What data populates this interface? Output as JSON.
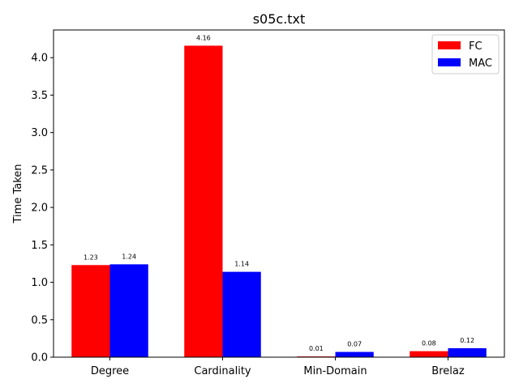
{
  "chart_data": {
    "type": "bar",
    "title": "s05c.txt",
    "xlabel": "",
    "ylabel": "Time Taken",
    "categories": [
      "Degree",
      "Cardinality",
      "Min-Domain",
      "Brelaz"
    ],
    "series": [
      {
        "name": "FC",
        "color": "#ff0000",
        "values": [
          1.23,
          4.16,
          0.01,
          0.08
        ],
        "labels": [
          "1.23",
          "4.16",
          "0.01",
          "0.08"
        ]
      },
      {
        "name": "MAC",
        "color": "#0000ff",
        "values": [
          1.24,
          1.14,
          0.07,
          0.12
        ],
        "labels": [
          "1.24",
          "1.14",
          "0.07",
          "0.12"
        ]
      }
    ],
    "ylim": [
      0,
      4.37
    ],
    "yticks": [
      0.0,
      0.5,
      1.0,
      1.5,
      2.0,
      2.5,
      3.0,
      3.5,
      4.0
    ],
    "ytick_labels": [
      "0.0",
      "0.5",
      "1.0",
      "1.5",
      "2.0",
      "2.5",
      "3.0",
      "3.5",
      "4.0"
    ],
    "grid": false,
    "legend_position": "top-right"
  }
}
